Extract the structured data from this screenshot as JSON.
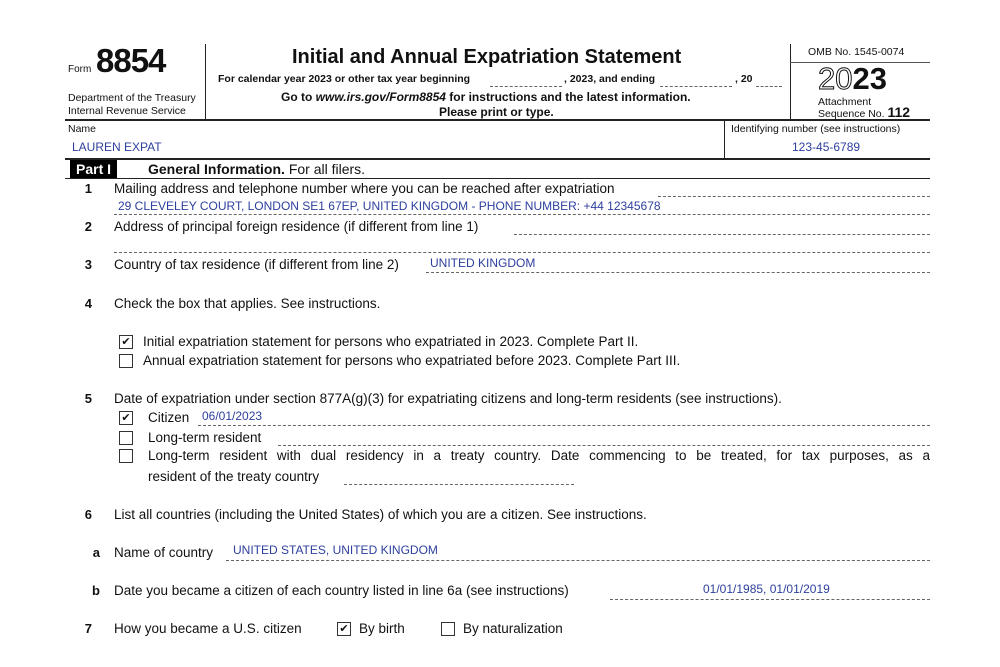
{
  "header": {
    "form_label": "Form",
    "form_number": "8854",
    "department": "Department of the Treasury",
    "service": "Internal Revenue Service",
    "title": "Initial and Annual Expatriation Statement",
    "year_line_a": "For calendar year 2023 or other tax year beginning",
    "year_line_b": ", 2023, and ending",
    "year_line_c": ", 20",
    "goto_pre": "Go to ",
    "goto_url": "www.irs.gov/Form8854",
    "goto_post": " for instructions and the latest information.",
    "print": "Please print or type.",
    "omb": "OMB No. 1545-0074",
    "year_outline": "20",
    "year_bold": "23",
    "attachment": "Attachment",
    "sequence_label": "Sequence No.",
    "sequence_no": "112"
  },
  "name": {
    "label": "Name",
    "value": "LAUREN EXPAT"
  },
  "id": {
    "label": "Identifying number (see instructions)",
    "value": "123-45-6789"
  },
  "part": {
    "tag": "Part I",
    "title": "General Information.",
    "subtitle": "For all filers."
  },
  "lines": {
    "l1": {
      "num": "1",
      "text": "Mailing address and telephone number where you can be reached after expatriation",
      "value": "29 CLEVELEY COURT, LONDON SE1 67EP, UNITED KINGDOM - PHONE NUMBER: +44 12345678"
    },
    "l2": {
      "num": "2",
      "text": "Address of principal foreign residence (if different from line 1)"
    },
    "l3": {
      "num": "3",
      "text": "Country of tax residence (if different from line 2)",
      "value": "UNITED KINGDOM"
    },
    "l4": {
      "num": "4",
      "text": "Check the box that applies. See instructions.",
      "options": [
        {
          "label": "Initial expatriation statement for persons who expatriated in 2023. Complete Part II.",
          "checked": true
        },
        {
          "label": "Annual expatriation statement for persons who expatriated before 2023. Complete Part III.",
          "checked": false
        }
      ]
    },
    "l5": {
      "num": "5",
      "text": "Date of expatriation under section 877A(g)(3) for expatriating citizens and long-term residents (see instructions).",
      "citizen": {
        "label": "Citizen",
        "value": "06/01/2023",
        "checked": true
      },
      "ltr": {
        "label": "Long-term resident",
        "checked": false
      },
      "dual": {
        "label": "Long-term resident with dual residency in a treaty country. Date commencing to be treated, for tax purposes, as a",
        "label2": "resident of the treaty country",
        "checked": false
      }
    },
    "l6": {
      "num": "6",
      "text": "List all countries (including the United States) of which you are a citizen. See instructions.",
      "a": {
        "letter": "a",
        "text": "Name of country",
        "value": "UNITED STATES, UNITED KINGDOM"
      },
      "b": {
        "letter": "b",
        "text": "Date you became a citizen of each country listed in line 6a (see instructions)",
        "value": "01/01/1985, 01/01/2019"
      }
    },
    "l7": {
      "num": "7",
      "text": "How you became a U.S. citizen",
      "birth": {
        "label": "By birth",
        "checked": true
      },
      "naturalization": {
        "label": "By naturalization",
        "checked": false
      }
    }
  },
  "check_mark": "✔"
}
